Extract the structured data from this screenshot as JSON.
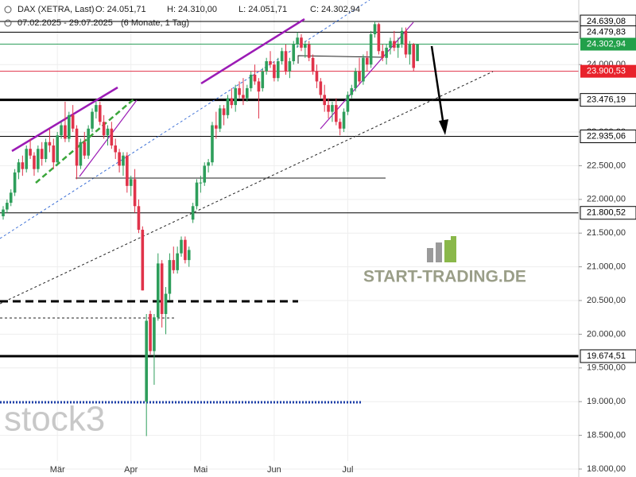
{
  "chart_data": {
    "type": "candlestick",
    "title": "DAX (XETRA, Last)",
    "ohlc_text": [
      "O: 24.051,71",
      "H: 24.310,00",
      "L: 24.051,71",
      "C: 24.302,94"
    ],
    "period": "07.02.2025 - 29.07.2025",
    "period_note": "(6 Monate, 1 Tag)",
    "watermarks": [
      "START-TRADING.DE",
      "stock3"
    ],
    "up_color": "#2e9e5b",
    "down_color": "#e0334a",
    "categories": [
      null,
      null,
      null,
      null,
      null,
      null,
      null,
      null,
      null,
      null,
      null,
      null,
      null,
      null,
      "Mär",
      null,
      null,
      null,
      null,
      null,
      null,
      null,
      null,
      null,
      null,
      null,
      null,
      null,
      null,
      null,
      null,
      null,
      null,
      "Apr",
      null,
      null,
      null,
      null,
      null,
      null,
      null,
      null,
      null,
      null,
      null,
      null,
      null,
      null,
      null,
      null,
      null,
      "Mai",
      null,
      null,
      null,
      null,
      null,
      null,
      null,
      null,
      null,
      null,
      null,
      null,
      null,
      null,
      null,
      null,
      null,
      null,
      "Jun",
      null,
      null,
      null,
      null,
      null,
      null,
      null,
      null,
      null,
      null,
      null,
      null,
      null,
      null,
      null,
      null,
      null,
      null,
      "Jul",
      null,
      null,
      null,
      null,
      null,
      null,
      null,
      null,
      null,
      null,
      null,
      null,
      null,
      null,
      null,
      null,
      null,
      null
    ],
    "open": [
      21750,
      21850,
      21950,
      22100,
      22400,
      22550,
      22450,
      22750,
      22650,
      22450,
      22750,
      22600,
      22850,
      22800,
      22550,
      22950,
      23100,
      22900,
      23250,
      23050,
      22500,
      22850,
      22650,
      23050,
      23300,
      23400,
      23150,
      22950,
      23050,
      22800,
      22700,
      22500,
      22650,
      22200,
      22300,
      21900,
      21550,
      19000,
      20300,
      19750,
      20250,
      21050,
      20300,
      20600,
      21100,
      20950,
      21200,
      21400,
      21100,
      21700,
      21900,
      22250,
      22250,
      22500,
      22550,
      23100,
      23050,
      23350,
      23250,
      23500,
      23400,
      23650,
      23550,
      23500,
      23650,
      23850,
      23750,
      23650,
      23900,
      24050,
      24000,
      23800,
      24050,
      24200,
      23900,
      24050,
      24300,
      24400,
      24250,
      24300,
      24100,
      23900,
      23750,
      23550,
      23400,
      23300,
      23400,
      23150,
      23050,
      23300,
      23550,
      23650,
      23900,
      23750,
      24100,
      24000,
      24450,
      24600,
      24200,
      24100,
      24250,
      24350,
      24250,
      24300,
      24500,
      24150,
      24300,
      24051.71
    ],
    "high": [
      21900,
      22000,
      22150,
      22450,
      22600,
      22650,
      22800,
      22900,
      22700,
      22800,
      22850,
      22900,
      23050,
      22900,
      23000,
      23150,
      23450,
      23300,
      23400,
      23100,
      22900,
      23000,
      23100,
      23350,
      23450,
      23450,
      23250,
      23100,
      23150,
      22900,
      22750,
      22700,
      22700,
      22350,
      22450,
      22000,
      21600,
      20300,
      20350,
      20300,
      21200,
      21100,
      20700,
      21200,
      21300,
      21300,
      21450,
      21450,
      21300,
      21950,
      22300,
      22350,
      22550,
      22600,
      23150,
      23300,
      23400,
      23400,
      23550,
      23650,
      23700,
      23750,
      23800,
      23700,
      23900,
      24000,
      23800,
      23950,
      24100,
      24200,
      24050,
      24100,
      24250,
      24300,
      24100,
      24350,
      24480,
      24450,
      24350,
      24350,
      24150,
      24000,
      23800,
      23700,
      23500,
      23450,
      23500,
      23200,
      23350,
      23600,
      23700,
      23950,
      24100,
      24150,
      24200,
      24500,
      24640,
      24620,
      24300,
      24300,
      24400,
      24500,
      24400,
      24550,
      24550,
      24350,
      24320,
      24310
    ],
    "low": [
      21700,
      21800,
      21900,
      22050,
      22300,
      22350,
      22400,
      22600,
      22350,
      22400,
      22500,
      22550,
      22700,
      22450,
      22500,
      22900,
      22850,
      22850,
      23000,
      22300,
      22450,
      22600,
      22600,
      23000,
      23200,
      23100,
      22900,
      22800,
      22750,
      22600,
      22400,
      22350,
      22100,
      22050,
      21800,
      21500,
      20650,
      18490,
      19700,
      19250,
      20200,
      20100,
      20000,
      20500,
      20900,
      20900,
      21150,
      21050,
      21000,
      21650,
      21850,
      22100,
      22200,
      22400,
      22500,
      22900,
      23000,
      23100,
      23200,
      23350,
      23300,
      23500,
      23400,
      23450,
      23600,
      23700,
      23200,
      23600,
      23850,
      23950,
      23750,
      23750,
      24000,
      23850,
      23800,
      24000,
      24250,
      24200,
      24100,
      24050,
      23850,
      23650,
      23500,
      23300,
      23200,
      23150,
      23100,
      22950,
      23000,
      23250,
      23500,
      23600,
      23700,
      23700,
      23900,
      23950,
      24400,
      24150,
      24050,
      24000,
      24150,
      24200,
      24100,
      24250,
      24100,
      24000,
      23900,
      24051.71
    ],
    "close": [
      21850,
      21950,
      22100,
      22400,
      22550,
      22450,
      22750,
      22650,
      22450,
      22750,
      22600,
      22850,
      22800,
      22550,
      22950,
      23100,
      22900,
      23250,
      23050,
      22500,
      22850,
      22650,
      23050,
      23300,
      23400,
      23150,
      22950,
      23050,
      22800,
      22700,
      22500,
      22650,
      22200,
      22300,
      21900,
      21550,
      20650,
      20200,
      19750,
      20250,
      21050,
      20300,
      20600,
      21100,
      20950,
      21200,
      21400,
      21100,
      21250,
      21900,
      22250,
      22250,
      22500,
      22550,
      23100,
      23050,
      23350,
      23250,
      23500,
      23400,
      23650,
      23550,
      23500,
      23650,
      23850,
      23750,
      23600,
      23900,
      24050,
      24000,
      23800,
      24050,
      24200,
      23900,
      24050,
      24300,
      24400,
      24250,
      24300,
      24100,
      23900,
      23750,
      23550,
      23400,
      23300,
      23400,
      23150,
      23050,
      23300,
      23550,
      23650,
      23900,
      23750,
      24100,
      24000,
      24450,
      24600,
      24200,
      24100,
      24250,
      24350,
      24250,
      24300,
      24500,
      24150,
      24300,
      23950,
      24302.94
    ],
    "ylim": [
      17882,
      24958
    ],
    "yticks": [
      {
        "value": 18000,
        "label": "18.000,00"
      },
      {
        "value": 18500,
        "label": "18.500,00"
      },
      {
        "value": 19000,
        "label": "19.000,00"
      },
      {
        "value": 19500,
        "label": "19.500,00"
      },
      {
        "value": 20000,
        "label": "20.000,00"
      },
      {
        "value": 20500,
        "label": "20.500,00"
      },
      {
        "value": 21000,
        "label": "21.000,00"
      },
      {
        "value": 21500,
        "label": "21.500,00"
      },
      {
        "value": 22000,
        "label": "22.000,00"
      },
      {
        "value": 22500,
        "label": "22.500,00"
      },
      {
        "value": 23000,
        "label": "23.000,00"
      },
      {
        "value": 23500,
        "label": "23.500,00"
      },
      {
        "value": 24000,
        "label": "24.000,00"
      }
    ],
    "grid": true,
    "levels": [
      {
        "value": 24639.08,
        "label": "24.639,08",
        "style": "thin"
      },
      {
        "value": 24479.83,
        "label": "24.479,83",
        "style": "thin"
      },
      {
        "value": 24302.94,
        "label": "24.302,94",
        "style": "green"
      },
      {
        "value": 23900.53,
        "label": "23.900,53",
        "style": "red"
      },
      {
        "value": 23476.19,
        "label": "23.476,19",
        "style": "thick"
      },
      {
        "value": 22935.06,
        "label": "22.935,06",
        "style": "thin"
      },
      {
        "value": 21800.52,
        "label": "21.800,52",
        "style": "thin"
      },
      {
        "value": 19674.51,
        "label": "19.674,51",
        "style": "thick"
      }
    ]
  }
}
